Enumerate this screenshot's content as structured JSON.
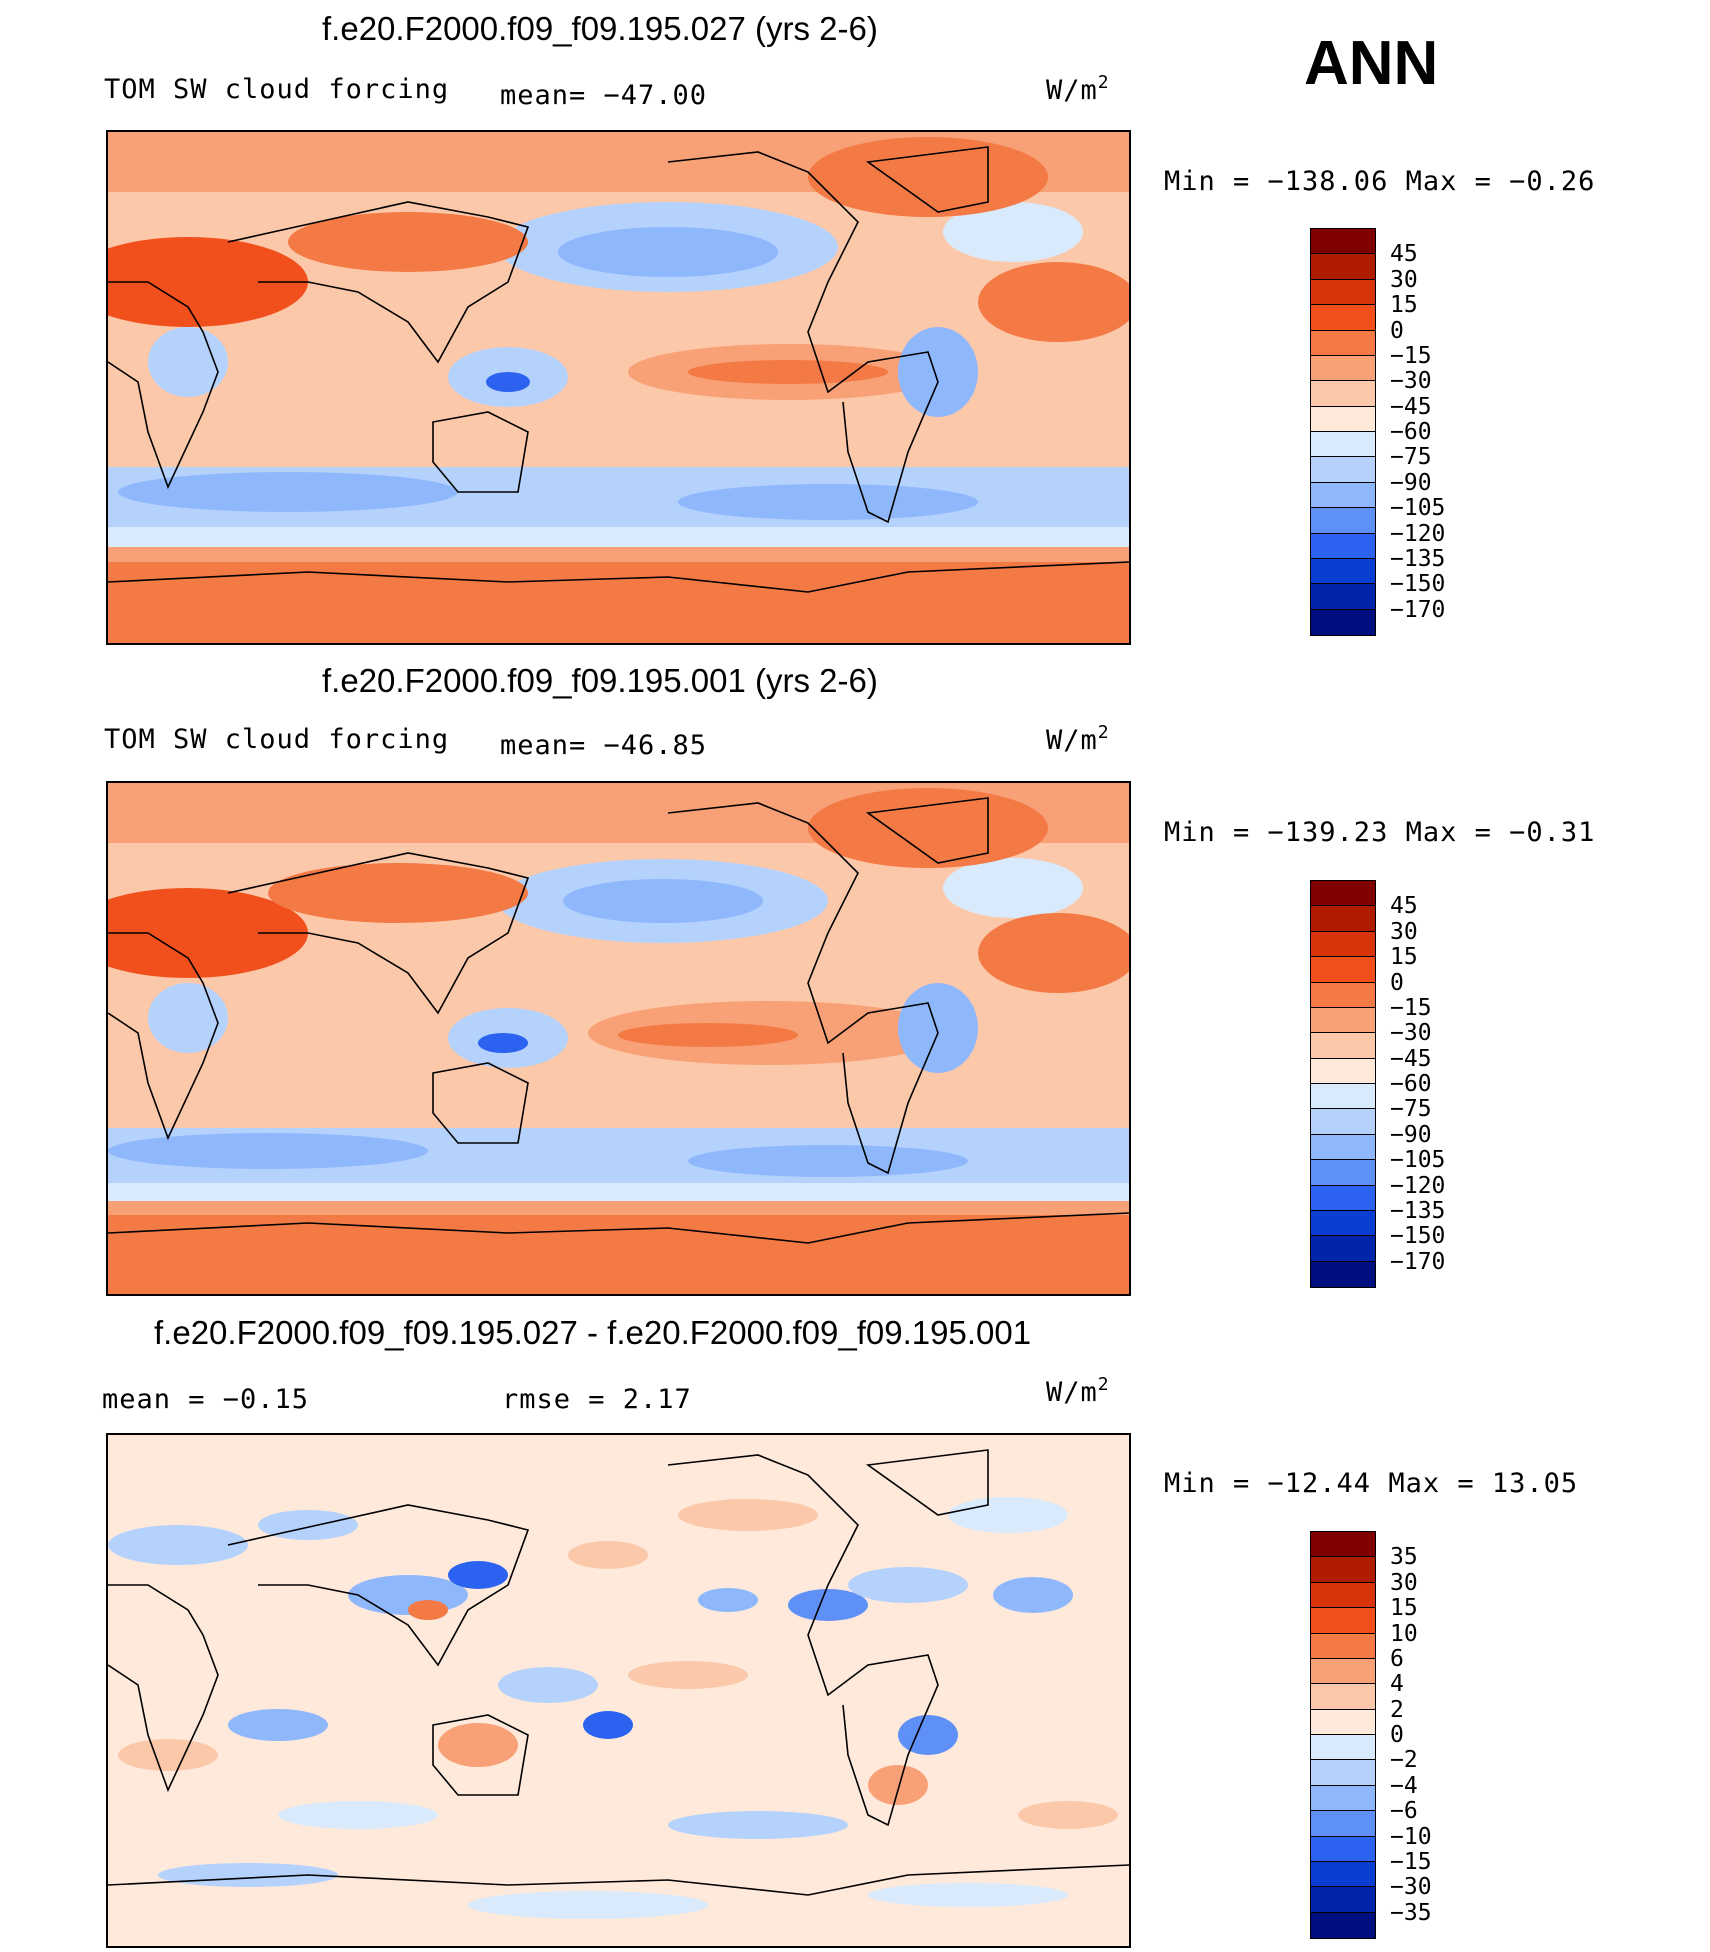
{
  "header": {
    "season": "ANN"
  },
  "chart_data": [
    {
      "type": "heatmap",
      "panel": "top",
      "title": "f.e20.F2000.f09_f09.195.027 (yrs 2-6)",
      "left_label": "TOM SW cloud forcing",
      "center_label": "mean=  −47.00",
      "units": "W/m",
      "units_exp": "2",
      "mean": -47.0,
      "min": -138.06,
      "max": -0.26,
      "minmax_text": "Min  =  −138.06  Max  =   −0.26",
      "colorbar": {
        "levels": [
          "45",
          "30",
          "15",
          "0",
          "−15",
          "−30",
          "−45",
          "−60",
          "−75",
          "−90",
          "−105",
          "−120",
          "−135",
          "−150",
          "−170"
        ],
        "colors": [
          "#7f0000",
          "#b01c00",
          "#d8330a",
          "#f1501d",
          "#f47a45",
          "#f8a076",
          "#fcc8aa",
          "#fee9db",
          "#d9eafc",
          "#b5d2fd",
          "#8fb7fc",
          "#5f90f8",
          "#2b63f0",
          "#0a3ed2",
          "#0224a8",
          "#000e80"
        ]
      }
    },
    {
      "type": "heatmap",
      "panel": "middle",
      "title": "f.e20.F2000.f09_f09.195.001 (yrs 2-6)",
      "left_label": "TOM SW cloud forcing",
      "center_label": "mean=  −46.85",
      "units": "W/m",
      "units_exp": "2",
      "mean": -46.85,
      "min": -139.23,
      "max": -0.31,
      "minmax_text": "Min  =  −139.23  Max  =   −0.31",
      "colorbar": {
        "levels": [
          "45",
          "30",
          "15",
          "0",
          "−15",
          "−30",
          "−45",
          "−60",
          "−75",
          "−90",
          "−105",
          "−120",
          "−135",
          "−150",
          "−170"
        ],
        "colors": [
          "#7f0000",
          "#b01c00",
          "#d8330a",
          "#f1501d",
          "#f47a45",
          "#f8a076",
          "#fcc8aa",
          "#fee9db",
          "#d9eafc",
          "#b5d2fd",
          "#8fb7fc",
          "#5f90f8",
          "#2b63f0",
          "#0a3ed2",
          "#0224a8",
          "#000e80"
        ]
      }
    },
    {
      "type": "heatmap",
      "panel": "bottom",
      "title": "f.e20.F2000.f09_f09.195.027 - f.e20.F2000.f09_f09.195.001",
      "left_label": "mean  =    −0.15",
      "center_label": "rmse  =     2.17",
      "units": "W/m",
      "units_exp": "2",
      "mean": -0.15,
      "rmse": 2.17,
      "min": -12.44,
      "max": 13.05,
      "minmax_text": "Min  =  −12.44  Max  =   13.05",
      "colorbar": {
        "levels": [
          "35",
          "30",
          "15",
          "10",
          "6",
          "4",
          "2",
          "0",
          "−2",
          "−4",
          "−6",
          "−10",
          "−15",
          "−30",
          "−35"
        ],
        "colors": [
          "#7f0000",
          "#b01c00",
          "#d8330a",
          "#f1501d",
          "#f47a45",
          "#f8a076",
          "#fcc8aa",
          "#fee9db",
          "#d9eafc",
          "#b5d2fd",
          "#8fb7fc",
          "#5f90f8",
          "#2b63f0",
          "#0a3ed2",
          "#0224a8",
          "#000e80"
        ]
      }
    }
  ]
}
